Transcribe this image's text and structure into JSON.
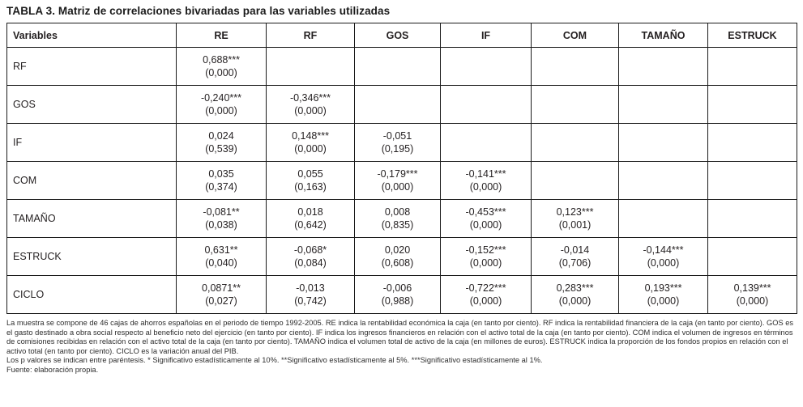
{
  "title": "TABLA 3. Matriz de correlaciones bivariadas para las variables utilizadas",
  "table": {
    "headers": [
      "Variables",
      "RE",
      "RF",
      "GOS",
      "IF",
      "COM",
      "TAMAÑO",
      "ESTRUCK"
    ],
    "rows": [
      {
        "label": "RF",
        "cells": [
          {
            "v": "0,688***",
            "p": "(0,000)"
          },
          null,
          null,
          null,
          null,
          null,
          null
        ]
      },
      {
        "label": "GOS",
        "cells": [
          {
            "v": "-0,240***",
            "p": "(0,000)"
          },
          {
            "v": "-0,346***",
            "p": "(0,000)"
          },
          null,
          null,
          null,
          null,
          null
        ]
      },
      {
        "label": "IF",
        "cells": [
          {
            "v": "0,024",
            "p": "(0,539)"
          },
          {
            "v": "0,148***",
            "p": "(0,000)"
          },
          {
            "v": "-0,051",
            "p": "(0,195)"
          },
          null,
          null,
          null,
          null
        ]
      },
      {
        "label": "COM",
        "cells": [
          {
            "v": "0,035",
            "p": "(0,374)"
          },
          {
            "v": "0,055",
            "p": "(0,163)"
          },
          {
            "v": "-0,179***",
            "p": "(0,000)"
          },
          {
            "v": "-0,141***",
            "p": "(0,000)"
          },
          null,
          null,
          null
        ]
      },
      {
        "label": "TAMAÑO",
        "cells": [
          {
            "v": "-0,081**",
            "p": "(0,038)"
          },
          {
            "v": "0,018",
            "p": "(0,642)"
          },
          {
            "v": "0,008",
            "p": "(0,835)"
          },
          {
            "v": "-0,453***",
            "p": "(0,000)"
          },
          {
            "v": "0,123***",
            "p": "(0,001)"
          },
          null,
          null
        ]
      },
      {
        "label": "ESTRUCK",
        "cells": [
          {
            "v": "0,631**",
            "p": "(0,040)"
          },
          {
            "v": "-0,068*",
            "p": "(0,084)"
          },
          {
            "v": "0,020",
            "p": "(0,608)"
          },
          {
            "v": "-0,152***",
            "p": "(0,000)"
          },
          {
            "v": "-0,014",
            "p": "(0,706)"
          },
          {
            "v": "-0,144***",
            "p": "(0,000)"
          },
          null
        ]
      },
      {
        "label": "CICLO",
        "cells": [
          {
            "v": "0,0871**",
            "p": "(0,027)"
          },
          {
            "v": "-0,013",
            "p": "(0,742)"
          },
          {
            "v": "-0,006",
            "p": "(0,988)"
          },
          {
            "v": "-0,722***",
            "p": "(0,000)"
          },
          {
            "v": "0,283***",
            "p": "(0,000)"
          },
          {
            "v": "0,193***",
            "p": "(0,000)"
          },
          {
            "v": "0,139***",
            "p": "(0,000)"
          }
        ]
      }
    ]
  },
  "footnotes": {
    "description": "La muestra se compone de 46 cajas de ahorros españolas en el periodo de tiempo 1992-2005. RE indica la rentabilidad económica la caja (en tanto por ciento). RF indica la rentabilidad financiera de la caja (en tanto por ciento). GOS es el gasto destinado a obra social respecto al beneficio neto del ejercicio (en tanto por ciento). IF indica los ingresos financieros en relación con el activo total de la caja (en tanto por ciento). COM indica el volumen de ingresos en términos de comisiones recibidas en relación con el activo total de la caja (en tanto por ciento). TAMAÑO indica el volumen total de activo de la caja (en millones de euros). ESTRUCK indica la proporción de los fondos propios en relación con el activo total (en tanto por ciento). CICLO es la variación anual del PIB.",
    "pvalues_note": "Los p valores se indican entre paréntesis. * Significativo estadísticamente al 10%. **Significativo estadísticamente al 5%. ***Significativo estadísticamente al 1%.",
    "source": "Fuente: elaboración propia."
  }
}
